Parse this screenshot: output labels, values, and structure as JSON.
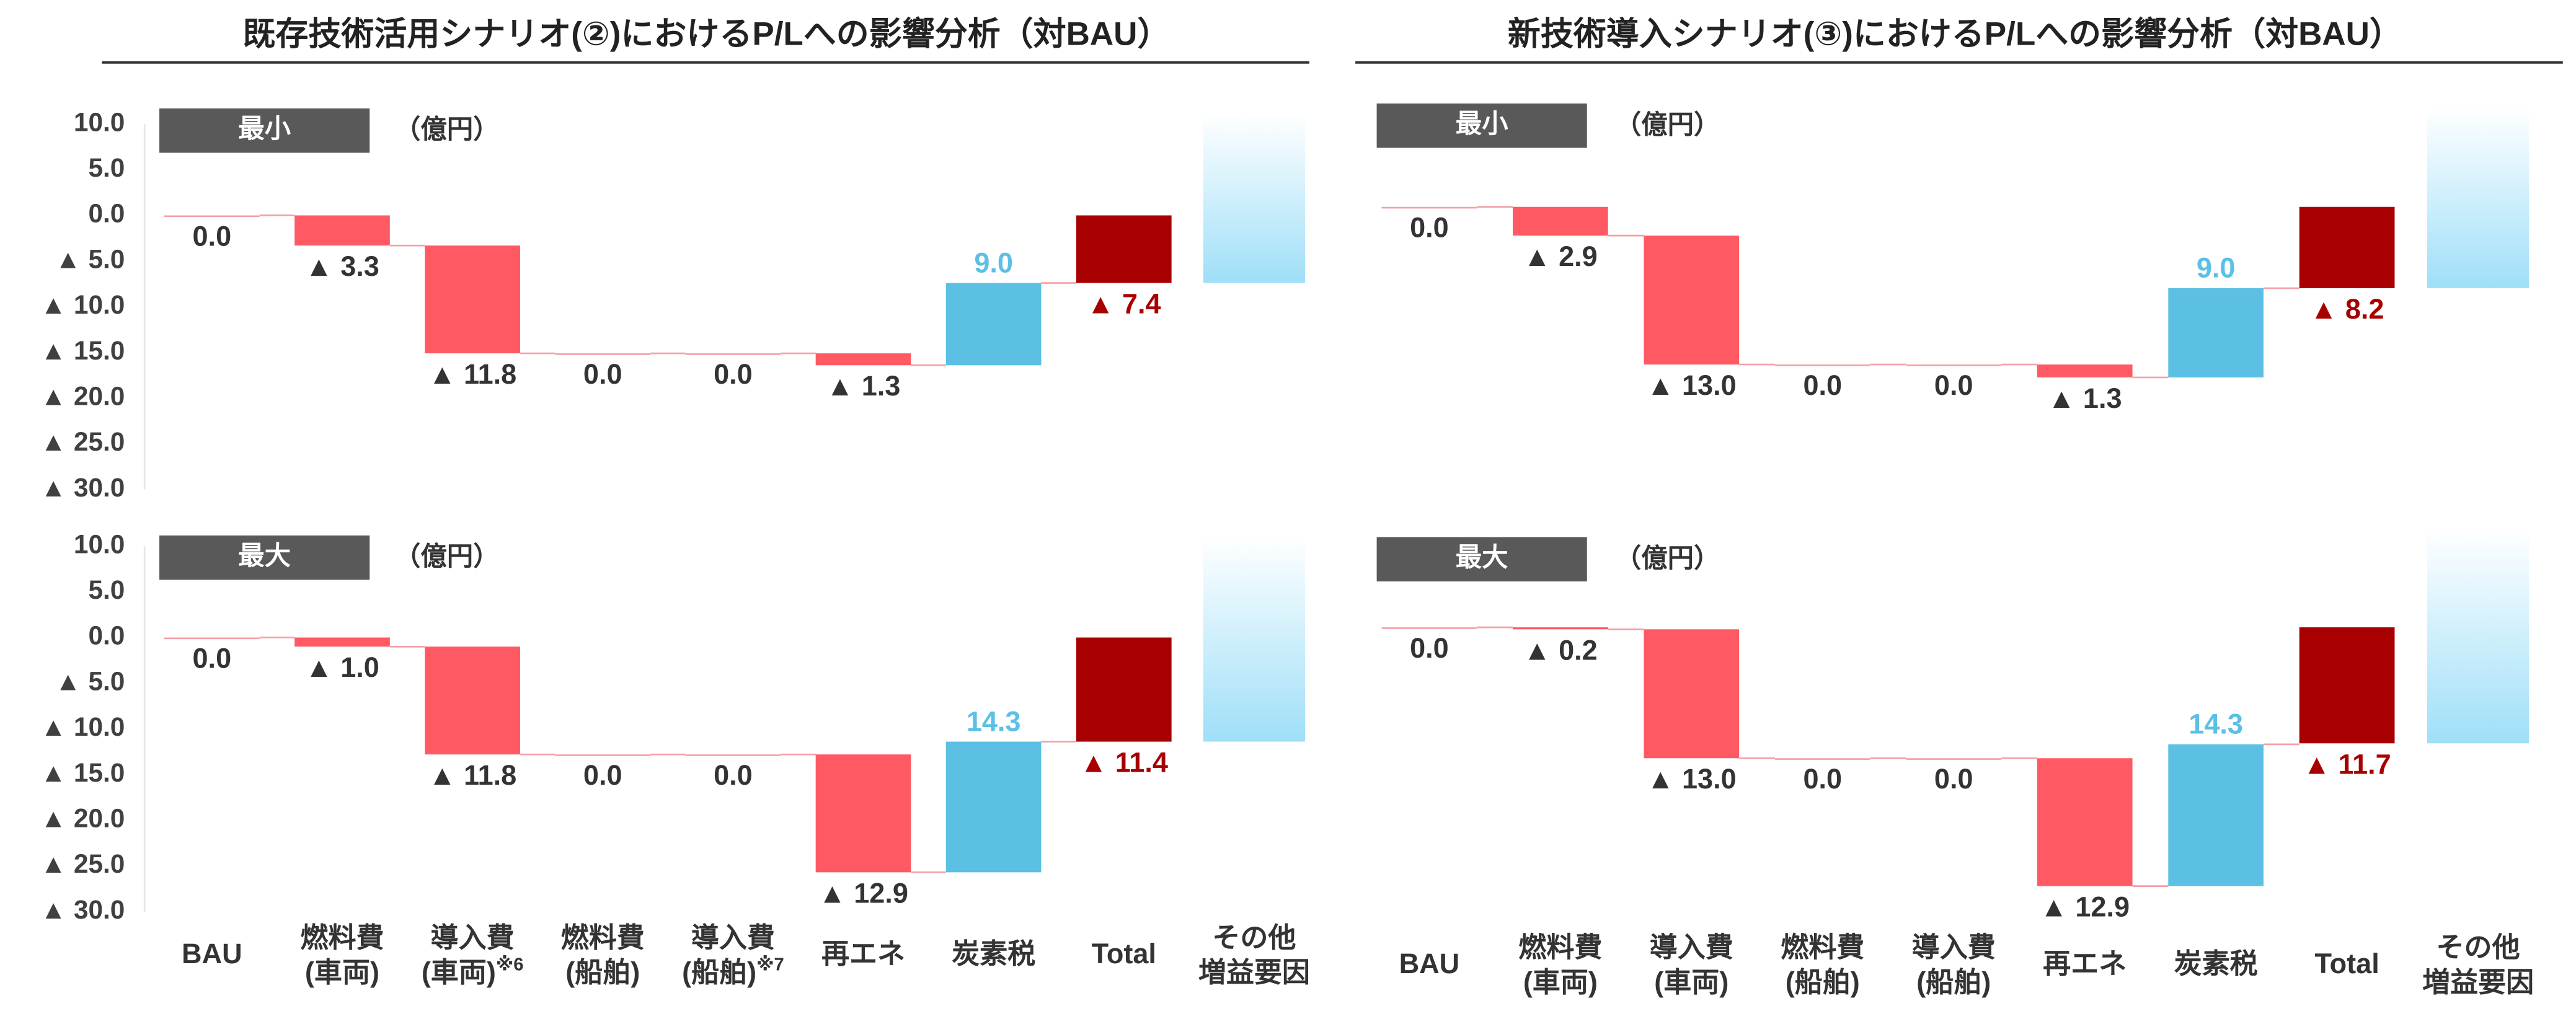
{
  "chart_data": [
    {
      "type": "waterfall",
      "title": "既存技術活用シナリオ(②)におけるP/Lへの影響分析（対BAU）",
      "panel_label": "最小",
      "unit": "（億円）",
      "values": [
        0,
        -3.3,
        -11.8,
        0,
        0,
        -1.3,
        9.0,
        -7.4
      ],
      "value_labels": [
        "0.0",
        "▲ 3.3",
        "▲ 11.8",
        "0.0",
        "0.0",
        "▲ 1.3",
        "9.0",
        "▲ 7.4"
      ],
      "ylim": [
        -30,
        10
      ],
      "yticks": [
        {
          "value": 10,
          "label": "10.0"
        },
        {
          "value": 5,
          "label": "5.0"
        },
        {
          "value": 0,
          "label": "0.0"
        },
        {
          "value": -5,
          "label": "▲ 5.0"
        },
        {
          "value": -10,
          "label": "▲ 10.0"
        },
        {
          "value": -15,
          "label": "▲ 15.0"
        },
        {
          "value": -20,
          "label": "▲ 20.0"
        },
        {
          "value": -25,
          "label": "▲ 25.0"
        },
        {
          "value": -30,
          "label": "▲ 30.0"
        }
      ],
      "colors": {
        "decrease": "#ff5a64",
        "increase": "#5bc0e4",
        "total": "#a80000",
        "other": "#9fdff8"
      }
    },
    {
      "type": "waterfall",
      "panel_label": "最大",
      "unit": "（億円）",
      "categories": [
        "BAU",
        "燃料費\n(車両)",
        "導入費\n(車両)※6",
        "燃料費\n(船舶)",
        "導入費\n(船舶)※7",
        "再エネ",
        "炭素税",
        "Total"
      ],
      "other_label": "その他\n増益要因",
      "values": [
        0,
        -1.0,
        -11.8,
        0,
        0,
        -12.9,
        14.3,
        -11.4
      ],
      "value_labels": [
        "0.0",
        "▲ 1.0",
        "▲ 11.8",
        "0.0",
        "0.0",
        "▲ 12.9",
        "14.3",
        "▲ 11.4"
      ],
      "ylim": [
        -30,
        10
      ],
      "yticks": [
        {
          "value": 10,
          "label": "10.0"
        },
        {
          "value": 5,
          "label": "5.0"
        },
        {
          "value": 0,
          "label": "0.0"
        },
        {
          "value": -5,
          "label": "▲ 5.0"
        },
        {
          "value": -10,
          "label": "▲ 10.0"
        },
        {
          "value": -15,
          "label": "▲ 15.0"
        },
        {
          "value": -20,
          "label": "▲ 20.0"
        },
        {
          "value": -25,
          "label": "▲ 25.0"
        },
        {
          "value": -30,
          "label": "▲ 30.0"
        }
      ],
      "colors": {
        "decrease": "#ff5a64",
        "increase": "#5bc0e4",
        "total": "#a80000",
        "other": "#9fdff8"
      }
    },
    {
      "type": "waterfall",
      "title": "新技術導入シナリオ(③)におけるP/Lへの影響分析（対BAU）",
      "panel_label": "最小",
      "unit": "（億円）",
      "values": [
        0,
        -2.9,
        -13.0,
        0,
        0,
        -1.3,
        9.0,
        -8.2
      ],
      "value_labels": [
        "0.0",
        "▲ 2.9",
        "▲ 13.0",
        "0.0",
        "0.0",
        "▲ 1.3",
        "9.0",
        "▲ 8.2"
      ],
      "ylim": [
        -29,
        9
      ],
      "colors": {
        "decrease": "#ff5a64",
        "increase": "#5bc0e4",
        "total": "#a80000",
        "other": "#9fdff8"
      }
    },
    {
      "type": "waterfall",
      "panel_label": "最大",
      "unit": "（億円）",
      "categories": [
        "BAU",
        "燃料費\n(車両)",
        "導入費\n(車両)",
        "燃料費\n(船舶)",
        "導入費\n(船舶)",
        "再エネ",
        "炭素税",
        "Total"
      ],
      "other_label": "その他\n増益要因",
      "values": [
        0,
        -0.2,
        -13.0,
        0,
        0,
        -12.9,
        14.3,
        -11.7
      ],
      "value_labels": [
        "0.0",
        "▲ 0.2",
        "▲ 13.0",
        "0.0",
        "0.0",
        "▲ 12.9",
        "14.3",
        "▲ 11.7"
      ],
      "ylim": [
        -29,
        9
      ],
      "colors": {
        "decrease": "#ff5a64",
        "increase": "#5bc0e4",
        "total": "#a80000",
        "other": "#9fdff8"
      }
    }
  ]
}
